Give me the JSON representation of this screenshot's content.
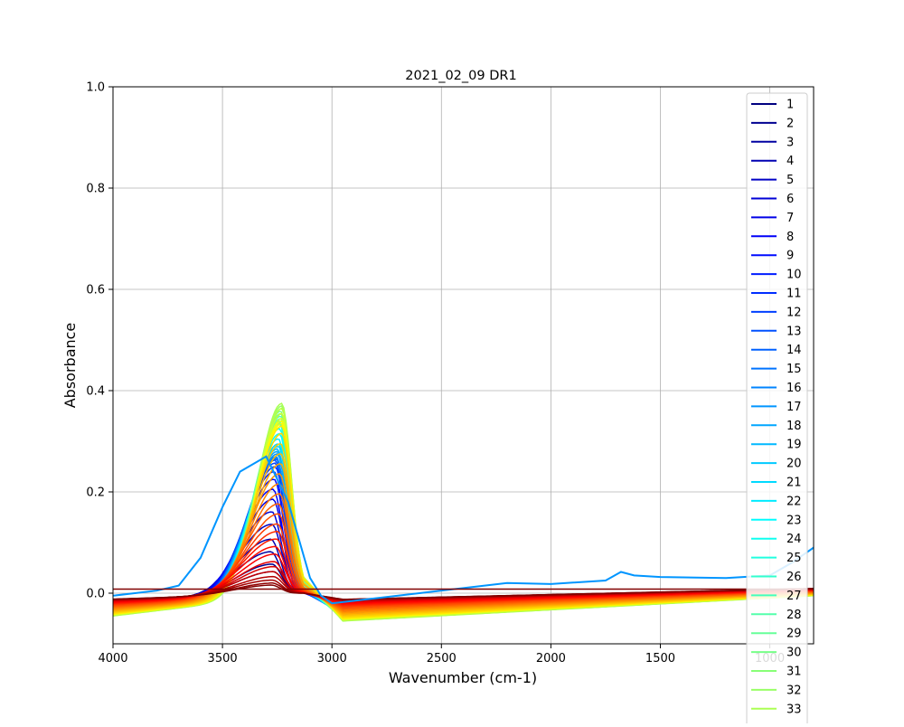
{
  "chart_data": {
    "type": "line",
    "title": "2021_02_09 DR1",
    "xlabel": "Wavenumber (cm-1)",
    "ylabel": "Absorbance",
    "xlim": [
      4000,
      800
    ],
    "ylim": [
      -0.1,
      1.0
    ],
    "x_ticks": [
      4000,
      3500,
      3000,
      2500,
      2000,
      1500,
      1000
    ],
    "y_ticks": [
      0.0,
      0.2,
      0.4,
      0.6,
      0.8,
      1.0
    ],
    "x_tick_labels": [
      "4000",
      "3500",
      "3000",
      "2500",
      "2000",
      "1500",
      "1000"
    ],
    "y_tick_labels": [
      "0.0",
      "0.2",
      "0.4",
      "0.6",
      "0.8",
      "1.0"
    ],
    "grid": true,
    "legend_position": "top-right",
    "colormap": "jet",
    "legend_visible_entries": [
      "1",
      "2",
      "3",
      "4",
      "5",
      "6",
      "7",
      "8",
      "9",
      "10",
      "11",
      "12",
      "13",
      "14",
      "15",
      "16",
      "17",
      "18",
      "19",
      "20",
      "21",
      "22",
      "23",
      "24",
      "25",
      "26",
      "27",
      "28",
      "29",
      "30",
      "31",
      "32",
      "33"
    ],
    "series_count": 60,
    "band_max_y": [
      0.045,
      0.06,
      0.085,
      0.11,
      0.14,
      0.165,
      0.19,
      0.21,
      0.23,
      0.245,
      0.255,
      0.262,
      0.268,
      0.27,
      0.272,
      0.275,
      0.28,
      0.285,
      0.29,
      0.295,
      0.3,
      0.31,
      0.32,
      0.33,
      0.34,
      0.345,
      0.35,
      0.355,
      0.36,
      0.365,
      0.37,
      0.375,
      0.38,
      0.37,
      0.36,
      0.35,
      0.345,
      0.34,
      0.335,
      0.32,
      0.3,
      0.28,
      0.26,
      0.24,
      0.22,
      0.2,
      0.18,
      0.16,
      0.14,
      0.125,
      0.11,
      0.095,
      0.08,
      0.065,
      0.055,
      0.045,
      0.035,
      0.028,
      0.022,
      0.018
    ],
    "band_peak_x": [
      3270,
      3275,
      3280,
      3280,
      3275,
      3275,
      3270,
      3270,
      3265,
      3265,
      3260,
      3260,
      3260,
      3255,
      3255,
      3255,
      3250,
      3250,
      3250,
      3245,
      3245,
      3245,
      3240,
      3240,
      3240,
      3240,
      3235,
      3235,
      3235,
      3235,
      3230,
      3230,
      3230,
      3230,
      3230,
      3230,
      3230,
      3230,
      3230,
      3230,
      3235,
      3235,
      3235,
      3240,
      3240,
      3240,
      3245,
      3245,
      3250,
      3250,
      3255,
      3260,
      3260,
      3265,
      3265,
      3270,
      3270,
      3275,
      3275,
      3280
    ],
    "highlight_series": {
      "index": 16,
      "points": [
        [
          4000,
          -0.005
        ],
        [
          3800,
          0.005
        ],
        [
          3700,
          0.015
        ],
        [
          3600,
          0.07
        ],
        [
          3500,
          0.17
        ],
        [
          3420,
          0.24
        ],
        [
          3300,
          0.27
        ],
        [
          3200,
          0.18
        ],
        [
          3100,
          0.03
        ],
        [
          3050,
          -0.005
        ],
        [
          3000,
          -0.02
        ],
        [
          2800,
          -0.01
        ],
        [
          2400,
          0.01
        ],
        [
          2200,
          0.02
        ],
        [
          2000,
          0.018
        ],
        [
          1750,
          0.025
        ],
        [
          1680,
          0.042
        ],
        [
          1620,
          0.035
        ],
        [
          1500,
          0.032
        ],
        [
          1200,
          0.03
        ],
        [
          1000,
          0.035
        ],
        [
          900,
          0.06
        ],
        [
          800,
          0.09
        ]
      ]
    }
  }
}
